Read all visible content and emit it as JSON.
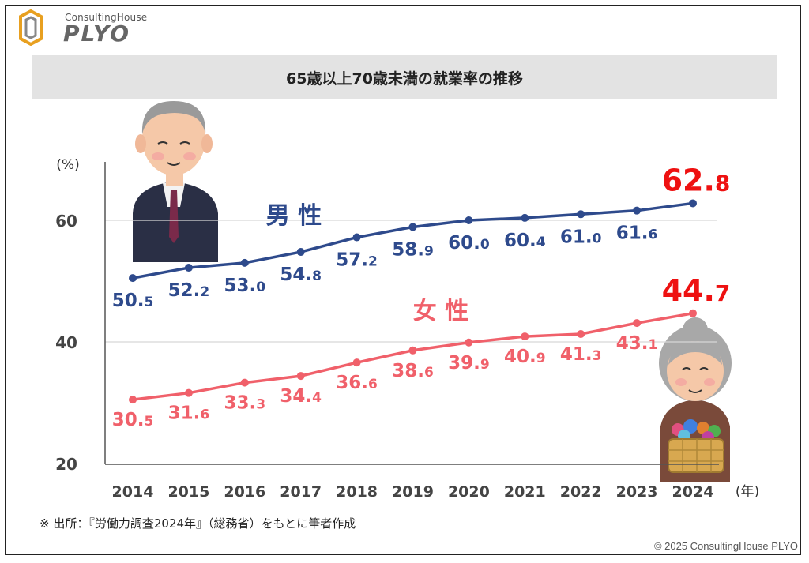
{
  "brand": {
    "sub": "ConsultingHouse",
    "main": "PLYO"
  },
  "title": "65歳以上70歳未満の就業率の推移",
  "source_note": "※ 出所：『労働力調査2024年』（総務省）をもとに筆者作成",
  "copyright": "© 2025 ConsultingHouse PLYO",
  "colors": {
    "male": "#2e4a8c",
    "female": "#f0606a",
    "highlight": "#ee1111",
    "grid": "#d6d6d6",
    "axis": "#555555"
  },
  "chart_data": {
    "type": "line",
    "title": "65歳以上70歳未満の就業率の推移",
    "ylabel": "(%)",
    "xlabel": "(年)",
    "ylim": [
      20,
      70
    ],
    "yticks": [
      20,
      40,
      60
    ],
    "grid": true,
    "categories": [
      "2014",
      "2015",
      "2016",
      "2017",
      "2018",
      "2019",
      "2020",
      "2021",
      "2022",
      "2023",
      "2024"
    ],
    "series": [
      {
        "name": "男 性",
        "values": [
          50.5,
          52.2,
          53.0,
          54.8,
          57.2,
          58.9,
          60.0,
          60.4,
          61.0,
          61.6,
          62.8
        ],
        "labels": [
          "50.5",
          "52.2",
          "53.0",
          "54.8",
          "57.2",
          "58.9",
          "60.0",
          "60.4",
          "61.0",
          "61.6",
          "62.8"
        ]
      },
      {
        "name": "女 性",
        "values": [
          30.5,
          31.6,
          33.3,
          34.4,
          36.6,
          38.6,
          39.9,
          40.9,
          41.3,
          43.1,
          44.7
        ],
        "labels": [
          "30.5",
          "31.6",
          "33.3",
          "34.4",
          "36.6",
          "38.6",
          "39.9",
          "40.9",
          "41.3",
          "43.1",
          "44.7"
        ]
      }
    ]
  }
}
